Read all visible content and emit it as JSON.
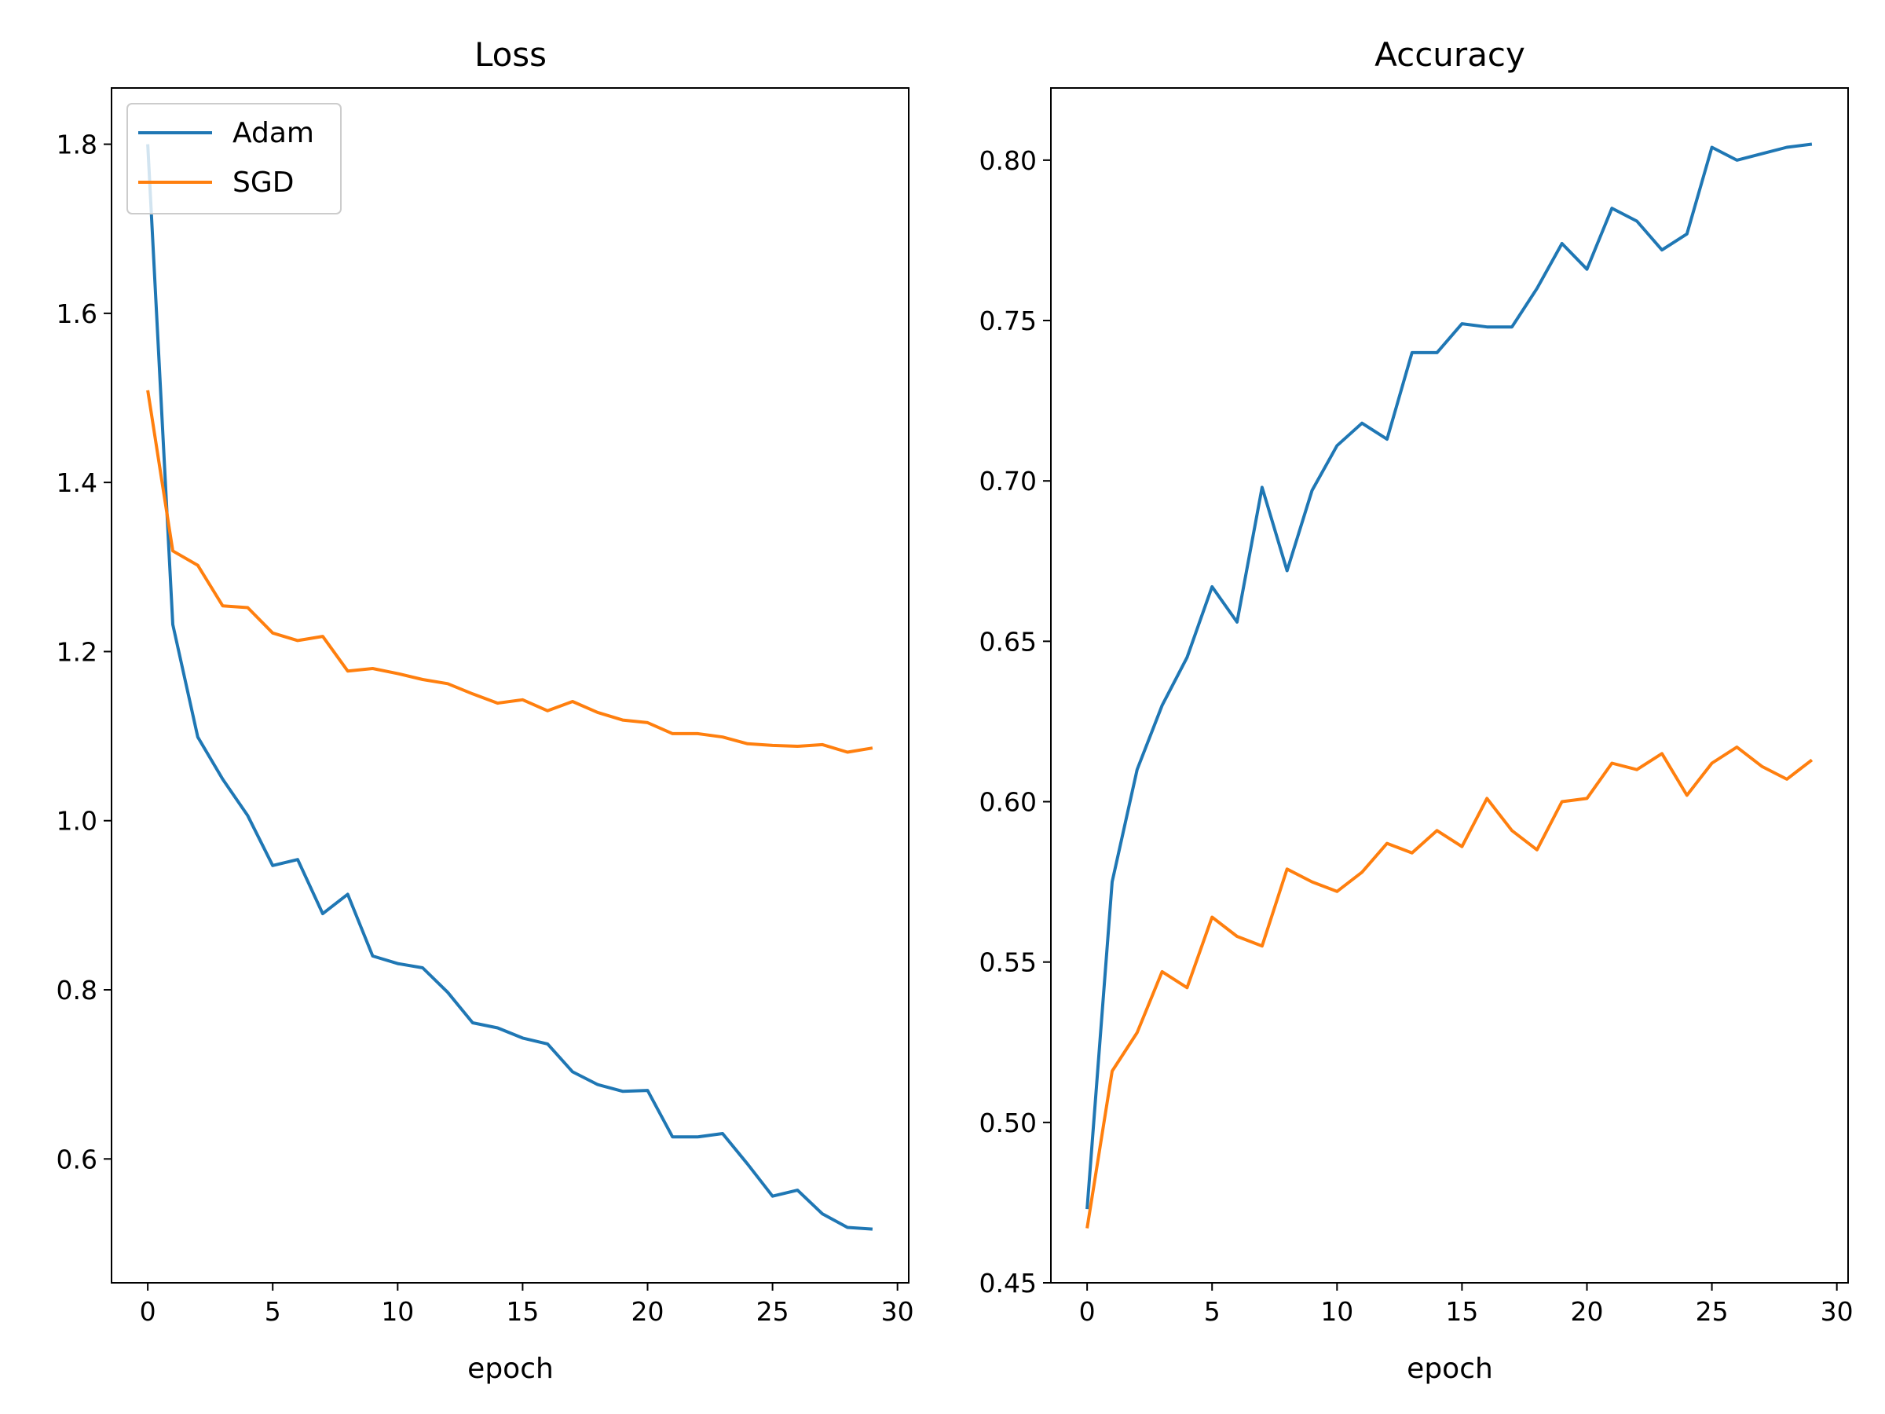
{
  "chart_data": [
    {
      "type": "line",
      "title": "Loss",
      "xlabel": "epoch",
      "ylabel": "",
      "xlim": [
        -1.45,
        30.45
      ],
      "ylim": [
        0.4535,
        1.8665
      ],
      "xticks": [
        0,
        5,
        10,
        15,
        20,
        25,
        30
      ],
      "yticks": [
        0.6,
        0.8,
        1.0,
        1.2,
        1.4,
        1.6,
        1.8
      ],
      "ytick_decimals": 1,
      "legend": "top-left",
      "grid": false,
      "series": [
        {
          "name": "Adam",
          "color": "#1f77b4",
          "x": [
            0,
            1,
            2,
            3,
            4,
            5,
            6,
            7,
            8,
            9,
            10,
            11,
            12,
            13,
            14,
            15,
            16,
            17,
            18,
            19,
            20,
            21,
            22,
            23,
            24,
            25,
            26,
            27,
            28,
            29
          ],
          "values": [
            1.8,
            1.232,
            1.099,
            1.049,
            1.006,
            0.947,
            0.954,
            0.89,
            0.913,
            0.84,
            0.831,
            0.826,
            0.797,
            0.761,
            0.755,
            0.743,
            0.736,
            0.703,
            0.688,
            0.68,
            0.681,
            0.626,
            0.626,
            0.63,
            0.594,
            0.556,
            0.563,
            0.535,
            0.519,
            0.517
          ]
        },
        {
          "name": "SGD",
          "color": "#ff7f0e",
          "x": [
            0,
            1,
            2,
            3,
            4,
            5,
            6,
            7,
            8,
            9,
            10,
            11,
            12,
            13,
            14,
            15,
            16,
            17,
            18,
            19,
            20,
            21,
            22,
            23,
            24,
            25,
            26,
            27,
            28,
            29
          ],
          "values": [
            1.509,
            1.319,
            1.302,
            1.254,
            1.252,
            1.222,
            1.213,
            1.218,
            1.177,
            1.18,
            1.174,
            1.167,
            1.162,
            1.15,
            1.139,
            1.143,
            1.13,
            1.141,
            1.128,
            1.119,
            1.116,
            1.103,
            1.103,
            1.099,
            1.091,
            1.089,
            1.088,
            1.09,
            1.081,
            1.086
          ]
        }
      ]
    },
    {
      "type": "line",
      "title": "Accuracy",
      "xlabel": "epoch",
      "ylabel": "",
      "xlim": [
        -1.45,
        30.45
      ],
      "ylim": [
        0.45,
        0.8225
      ],
      "xticks": [
        0,
        5,
        10,
        15,
        20,
        25,
        30
      ],
      "yticks": [
        0.45,
        0.5,
        0.55,
        0.6,
        0.65,
        0.7,
        0.75,
        0.8
      ],
      "ytick_decimals": 2,
      "legend": "none",
      "grid": false,
      "series": [
        {
          "name": "Adam",
          "color": "#1f77b4",
          "x": [
            0,
            1,
            2,
            3,
            4,
            5,
            6,
            7,
            8,
            9,
            10,
            11,
            12,
            13,
            14,
            15,
            16,
            17,
            18,
            19,
            20,
            21,
            22,
            23,
            24,
            25,
            26,
            27,
            28,
            29
          ],
          "values": [
            0.473,
            0.575,
            0.61,
            0.63,
            0.645,
            0.667,
            0.656,
            0.698,
            0.672,
            0.697,
            0.711,
            0.718,
            0.713,
            0.74,
            0.74,
            0.749,
            0.748,
            0.748,
            0.76,
            0.774,
            0.766,
            0.785,
            0.781,
            0.772,
            0.777,
            0.804,
            0.8,
            0.802,
            0.804,
            0.805
          ]
        },
        {
          "name": "SGD",
          "color": "#ff7f0e",
          "x": [
            0,
            1,
            2,
            3,
            4,
            5,
            6,
            7,
            8,
            9,
            10,
            11,
            12,
            13,
            14,
            15,
            16,
            17,
            18,
            19,
            20,
            21,
            22,
            23,
            24,
            25,
            26,
            27,
            28,
            29
          ],
          "values": [
            0.467,
            0.516,
            0.528,
            0.547,
            0.542,
            0.564,
            0.558,
            0.555,
            0.579,
            0.575,
            0.572,
            0.578,
            0.587,
            0.584,
            0.591,
            0.586,
            0.601,
            0.591,
            0.585,
            0.6,
            0.601,
            0.612,
            0.61,
            0.615,
            0.602,
            0.612,
            0.617,
            0.611,
            0.607,
            0.613
          ]
        }
      ]
    }
  ]
}
